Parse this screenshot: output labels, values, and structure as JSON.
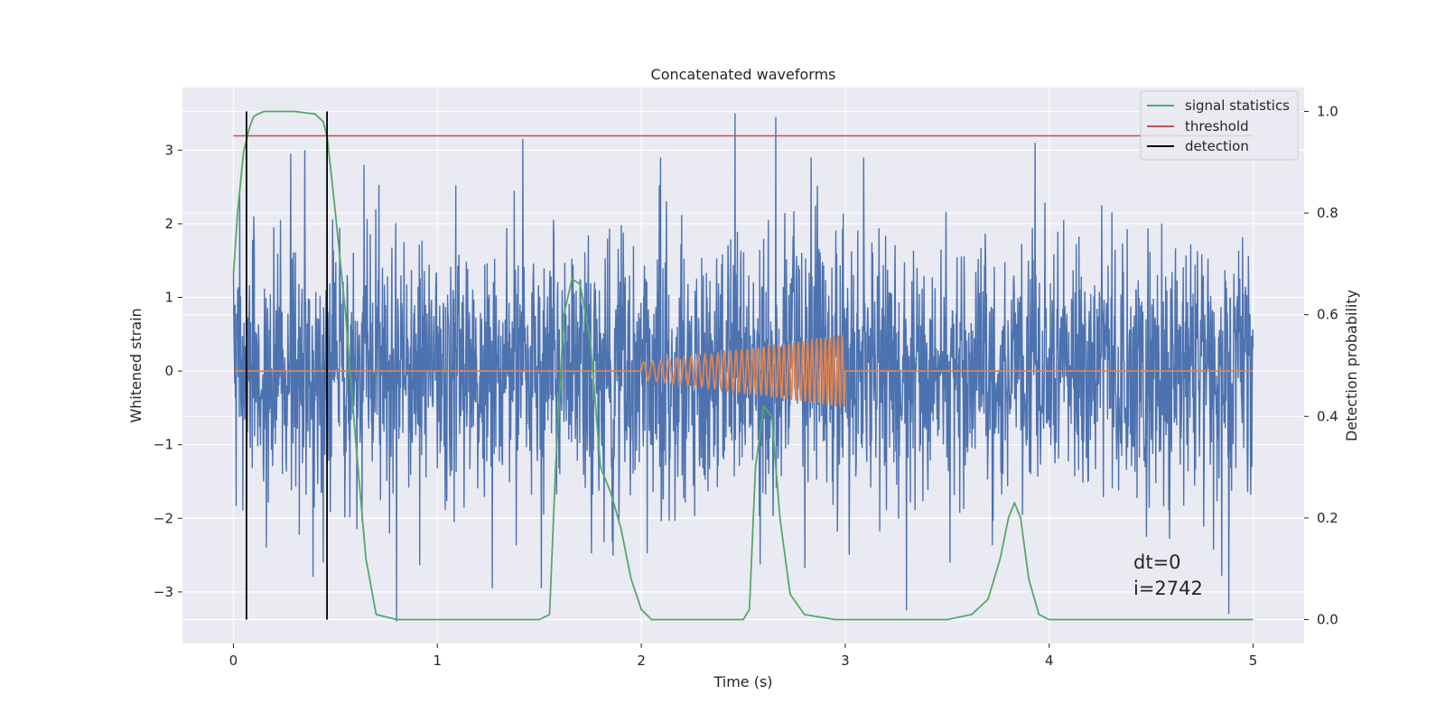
{
  "chart_data": {
    "type": "line",
    "title": "Concatenated waveforms",
    "xlabel": "Time (s)",
    "ylabel": "Whitened strain",
    "y2label": "Detection probability",
    "xlim": [
      -0.25,
      5.25
    ],
    "ylim": [
      -3.7,
      3.85
    ],
    "y2lim": [
      -0.047,
      1.047
    ],
    "xticks": [
      0,
      1,
      2,
      3,
      4,
      5
    ],
    "xtick_labels": [
      "0",
      "1",
      "2",
      "3",
      "4",
      "5"
    ],
    "yticks": [
      3,
      2,
      1,
      0,
      -1,
      -2,
      -3
    ],
    "ytick_labels": [
      "3",
      "2",
      "1",
      "0",
      "−1",
      "−2",
      "−3"
    ],
    "y2ticks": [
      1.0,
      0.8,
      0.6,
      0.4,
      0.2,
      0.0
    ],
    "y2tick_labels": [
      "1.0",
      "0.8",
      "0.6",
      "0.4",
      "0.2",
      "0.0"
    ],
    "grid": true,
    "legend_position": "top-right",
    "colors": {
      "strain": "#4c72b0",
      "template": "#dd8452",
      "signal": "#55a868",
      "threshold": "#c44e52",
      "detection": "#000000",
      "background": "#eaeaf2",
      "grid": "#ffffff"
    },
    "series": [
      {
        "name": "",
        "axis": "left",
        "kind": "noise",
        "x_range": [
          0,
          5
        ],
        "std": 0.85,
        "spikes": [
          {
            "x": 0.03,
            "y": 2.45
          },
          {
            "x": 0.1,
            "y": -2.6
          },
          {
            "x": 0.1,
            "y": 2.1
          },
          {
            "x": 0.28,
            "y": -2.65
          },
          {
            "x": 0.28,
            "y": 2.95
          },
          {
            "x": 0.35,
            "y": 3.0
          },
          {
            "x": 0.44,
            "y": -2.6
          },
          {
            "x": 0.64,
            "y": 2.8
          },
          {
            "x": 0.8,
            "y": -3.4
          },
          {
            "x": 1.27,
            "y": -2.95
          },
          {
            "x": 1.42,
            "y": 3.15
          },
          {
            "x": 1.51,
            "y": -2.95
          },
          {
            "x": 2.46,
            "y": 3.5
          },
          {
            "x": 2.66,
            "y": 3.45
          },
          {
            "x": 3.3,
            "y": -3.25
          },
          {
            "x": 3.93,
            "y": 3.1
          },
          {
            "x": 4.88,
            "y": -3.3
          }
        ]
      },
      {
        "name": "",
        "axis": "left",
        "kind": "chirp",
        "x_range": [
          0,
          5
        ],
        "chirp_start": 2.0,
        "chirp_end": 3.0,
        "amp_start": 0.12,
        "amp_end": 0.5
      },
      {
        "name": "signal statistics",
        "axis": "right",
        "x": [
          0,
          0.02,
          0.05,
          0.08,
          0.1,
          0.12,
          0.15,
          0.2,
          0.3,
          0.4,
          0.44,
          0.46,
          0.5,
          0.55,
          0.6,
          0.65,
          0.7,
          0.8,
          1.5,
          1.55,
          1.58,
          1.62,
          1.66,
          1.7,
          1.75,
          1.8,
          1.85,
          1.9,
          1.95,
          2.0,
          2.05,
          2.1,
          2.5,
          2.53,
          2.56,
          2.6,
          2.64,
          2.68,
          2.73,
          2.8,
          2.95,
          3.5,
          3.62,
          3.7,
          3.76,
          3.8,
          3.83,
          3.86,
          3.9,
          3.95,
          4.0,
          5.0
        ],
        "y": [
          0.68,
          0.8,
          0.92,
          0.97,
          0.99,
          0.995,
          1.0,
          1.0,
          1.0,
          0.995,
          0.98,
          0.95,
          0.8,
          0.6,
          0.35,
          0.12,
          0.01,
          0.0,
          0.0,
          0.01,
          0.3,
          0.6,
          0.67,
          0.66,
          0.55,
          0.3,
          0.25,
          0.18,
          0.08,
          0.02,
          0.0,
          0.0,
          0.0,
          0.02,
          0.3,
          0.42,
          0.4,
          0.2,
          0.05,
          0.01,
          0.0,
          0.0,
          0.01,
          0.04,
          0.12,
          0.2,
          0.23,
          0.2,
          0.08,
          0.01,
          0.0,
          0.0
        ]
      },
      {
        "name": "threshold",
        "axis": "right",
        "x": [
          0,
          5
        ],
        "y": [
          0.952,
          0.952
        ]
      },
      {
        "name": "detection",
        "axis": "right",
        "kind": "vlines",
        "x": [
          0.064,
          0.459
        ],
        "y_range": [
          0.0,
          1.0
        ]
      }
    ],
    "annotations": [
      {
        "text": "dt=0"
      },
      {
        "text": "i=2742"
      }
    ]
  }
}
